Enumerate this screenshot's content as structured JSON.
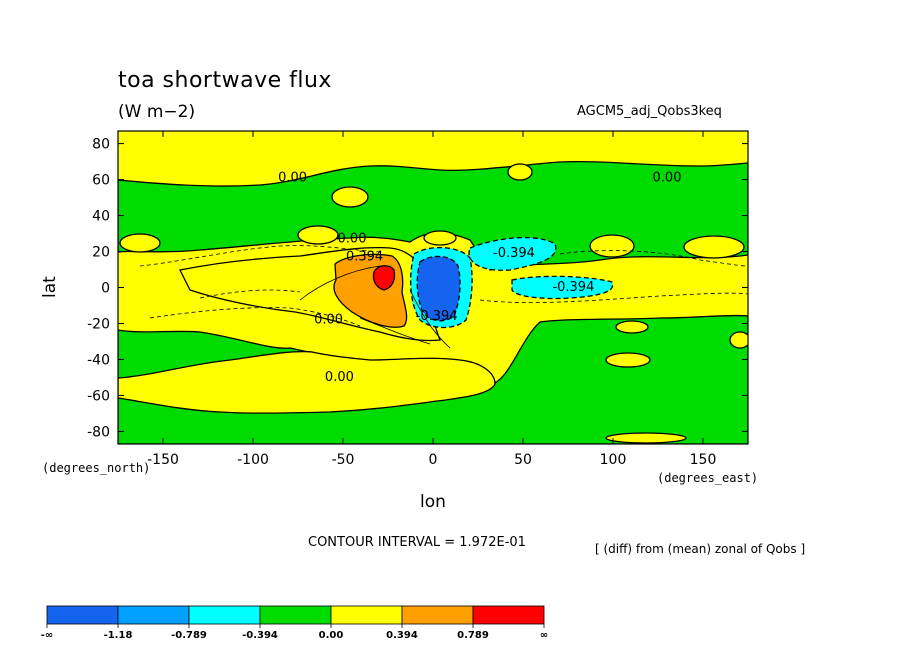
{
  "chart_data": {
    "type": "heatmap",
    "title": "toa shortwave flux",
    "units": "(W m−2)",
    "experiment": "AGCM5_adj_Qobs3keq",
    "xlabel": "lon",
    "ylabel": "lat",
    "x_unit_label": "(degrees_east)",
    "y_unit_label": "(degrees_north)",
    "xlim": [
      -175,
      175
    ],
    "ylim": [
      -87,
      87
    ],
    "x_ticks": [
      -150,
      -100,
      -50,
      0,
      50,
      100,
      150
    ],
    "y_ticks": [
      80,
      60,
      40,
      20,
      0,
      -20,
      -40,
      -60,
      -80
    ],
    "contour_interval_text": "CONTOUR INTERVAL = 1.972E-01",
    "difference_note": "[ (diff) from (mean) zonal of Qobs ]",
    "contour_labels": [
      {
        "text": "0.00",
        "lon": -78,
        "lat": 59
      },
      {
        "text": "0.00",
        "lon": 130,
        "lat": 59
      },
      {
        "text": "0.00",
        "lon": -45,
        "lat": 25
      },
      {
        "text": "0.00",
        "lon": -58,
        "lat": -20
      },
      {
        "text": "0.00",
        "lon": -52,
        "lat": -52
      },
      {
        "text": "0.394",
        "lon": -38,
        "lat": 15
      },
      {
        "text": "-0.394",
        "lon": 45,
        "lat": 17
      },
      {
        "text": "-0.394",
        "lon": 78,
        "lat": -2
      },
      {
        "text": "-0.394",
        "lon": 2,
        "lat": -18
      }
    ],
    "colorbar": {
      "colors": [
        "#1464f0",
        "#00a0ff",
        "#00ffff",
        "#00dc00",
        "#ffff00",
        "#ffa000",
        "#ff0000"
      ],
      "labels": [
        "-∞",
        "-1.18",
        "-0.789",
        "-0.394",
        "0.00",
        "0.394",
        "0.789",
        "∞"
      ]
    }
  }
}
